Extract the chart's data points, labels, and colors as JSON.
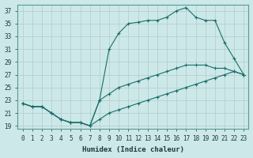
{
  "xlabel": "Humidex (Indice chaleur)",
  "background_color": "#cce8e8",
  "grid_color": "#b0cccc",
  "line_color": "#1a6e6a",
  "xlim": [
    -0.5,
    23.5
  ],
  "ylim": [
    18.5,
    38
  ],
  "xticks": [
    0,
    1,
    2,
    3,
    4,
    5,
    6,
    7,
    8,
    9,
    10,
    11,
    12,
    13,
    14,
    15,
    16,
    17,
    18,
    19,
    20,
    21,
    22,
    23
  ],
  "yticks": [
    19,
    21,
    23,
    25,
    27,
    29,
    31,
    33,
    35,
    37
  ],
  "series": [
    {
      "x": [
        0,
        1,
        2,
        3,
        4,
        5,
        6,
        7,
        8,
        9,
        10,
        11,
        12,
        13,
        14,
        15,
        16,
        17,
        18,
        19,
        20,
        21,
        22,
        23
      ],
      "y": [
        22.5,
        22,
        22,
        21,
        20,
        19.5,
        19.5,
        19,
        23,
        31,
        33.5,
        35,
        35.2,
        35.5,
        35.5,
        36,
        37,
        37.5,
        36,
        35.5,
        35.5,
        32,
        29.5,
        27
      ]
    },
    {
      "x": [
        0,
        1,
        2,
        3,
        4,
        5,
        6,
        7,
        8,
        9,
        10,
        11,
        12,
        13,
        14,
        15,
        16,
        17,
        18,
        19,
        20,
        21,
        22,
        23
      ],
      "y": [
        22.5,
        22,
        22,
        21,
        20,
        19.5,
        19.5,
        19,
        23,
        24,
        25,
        25.5,
        26,
        26.5,
        27,
        27.5,
        28,
        28.5,
        28.5,
        28.5,
        28,
        28,
        27.5,
        27
      ]
    },
    {
      "x": [
        0,
        1,
        2,
        3,
        4,
        5,
        6,
        7,
        8,
        9,
        10,
        11,
        12,
        13,
        14,
        15,
        16,
        17,
        18,
        19,
        20,
        21,
        22,
        23
      ],
      "y": [
        22.5,
        22,
        22,
        21,
        20,
        19.5,
        19.5,
        19,
        20,
        21,
        21.5,
        22,
        22.5,
        23,
        23.5,
        24,
        24.5,
        25,
        25.5,
        26,
        26.5,
        27,
        27.5,
        27
      ]
    }
  ]
}
